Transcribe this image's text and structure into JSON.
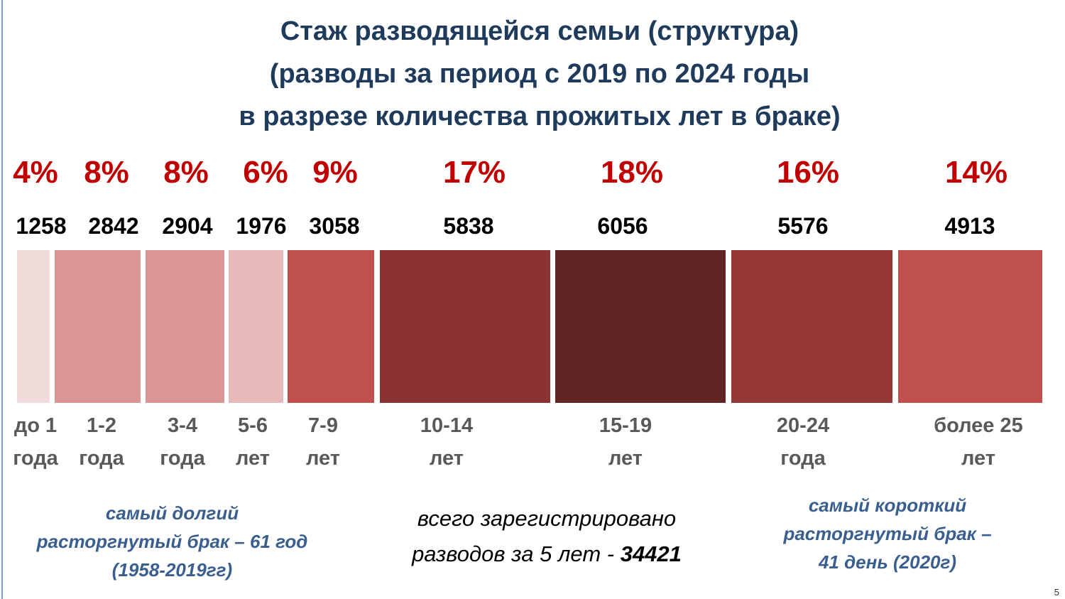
{
  "title_lines": [
    "Стаж разводящейся семьи (структура)",
    "(разводы за период с 2019 по 2024 годы",
    "в разрезе количества прожитых лет в браке)"
  ],
  "chart_data": {
    "type": "bar",
    "subtype": "stacked-horizontal-proportional",
    "title": "Стаж разводящейся семьи (структура) (разводы за период с 2019 по 2024 годы в разрезе количества прожитых лет в браке)",
    "categories": [
      [
        "до 1",
        "года"
      ],
      [
        "1-2",
        "года"
      ],
      [
        "3-4",
        "года"
      ],
      [
        "5-6",
        "лет"
      ],
      [
        "7-9",
        "лет"
      ],
      [
        "10-14",
        "лет"
      ],
      [
        "15-19",
        "лет"
      ],
      [
        "20-24",
        "года"
      ],
      [
        "более 25",
        "лет"
      ]
    ],
    "percent_labels": [
      "4%",
      "8%",
      "8%",
      "6%",
      "9%",
      "17%",
      "18%",
      "16%",
      "14%"
    ],
    "percents": [
      4,
      8,
      8,
      6,
      9,
      17,
      18,
      16,
      14
    ],
    "values": [
      1258,
      2842,
      2904,
      1976,
      3058,
      5838,
      6056,
      5576,
      4913
    ],
    "value_labels": [
      "1258",
      "2842",
      "2904",
      "1976",
      "3058",
      "5838",
      "6056",
      "5576",
      "4913"
    ],
    "colors": [
      "#f2dcdb",
      "#d99694",
      "#d99694",
      "#e6b9b8",
      "#c0504d",
      "#8b3232",
      "#632523",
      "#953735",
      "#c0504d"
    ]
  },
  "notes": {
    "longest": [
      "самый долгий",
      "расторгнутый брак – 61 год",
      "(1958-2019гг)"
    ],
    "total_line1": "всего зарегистрировано",
    "total_line2": "разводов за 5 лет - ",
    "total_value": "34421",
    "shortest": [
      "самый короткий",
      "расторгнутый брак –",
      "41 день (2020г)"
    ]
  },
  "page_number": "5"
}
